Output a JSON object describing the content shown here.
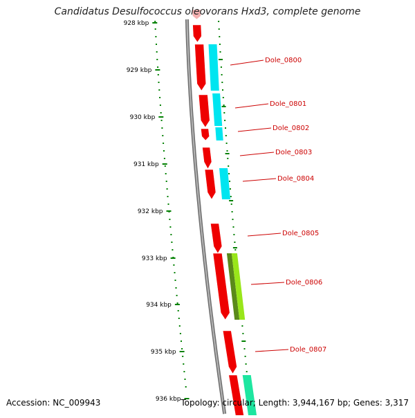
{
  "title": "Candidatus Desulfococcus oleovorans Hxd3, complete genome",
  "accession": "Accession: NC_009943",
  "topology": "Topology: circular; Length: 3,944,167 bp; Genes: 3,317",
  "colors": {
    "backbone": "#888888",
    "ticks": "#008000",
    "gene_red": "#ee0000",
    "gene_cyan": "#00e5f0",
    "gene_green": "#99e61a",
    "gene_teal": "#1ee6a0",
    "label": "#cc0000"
  },
  "kbp_ticks": [
    "928 kbp",
    "929 kbp",
    "930 kbp",
    "931 kbp",
    "932 kbp",
    "933 kbp",
    "934 kbp",
    "935 kbp",
    "936 kbp"
  ],
  "gene_labels": [
    "Dole_0800",
    "Dole_0801",
    "Dole_0802",
    "Dole_0803",
    "Dole_0804",
    "Dole_0805",
    "Dole_0806",
    "Dole_0807"
  ]
}
